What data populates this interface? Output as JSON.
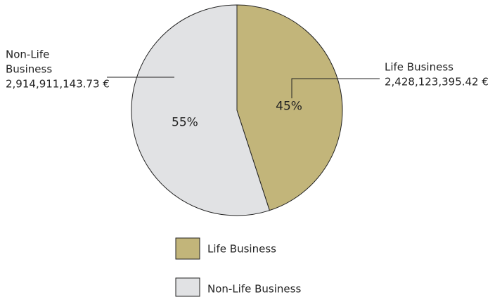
{
  "chart_data": {
    "type": "pie",
    "categories": [
      "Life Business",
      "Non-Life Business"
    ],
    "values": [
      45,
      55
    ],
    "value_labels": [
      "45%",
      "55%"
    ],
    "colors": [
      "#c2b57a",
      "#e1e2e4"
    ],
    "annotations": [
      {
        "text": [
          "Life Business",
          "2,428,123,395.42 €"
        ]
      },
      {
        "text": [
          "Non-Life",
          "Business",
          "2,914,911,143.73 €"
        ]
      }
    ],
    "legend": "bottom"
  }
}
